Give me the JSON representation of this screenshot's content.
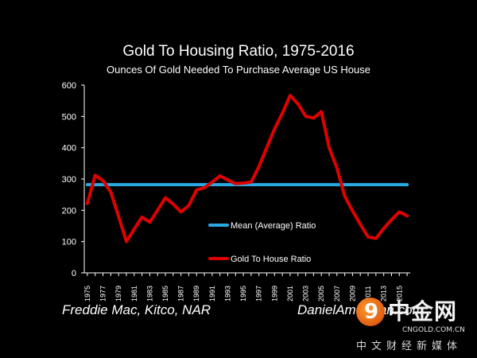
{
  "chart_data": {
    "type": "line",
    "title": "Gold To Housing Ratio, 1975-2016",
    "subtitle": "Ounces Of Gold Needed To Purchase Average US House",
    "ylim": [
      0,
      600
    ],
    "yticks": [
      0,
      100,
      200,
      300,
      400,
      500,
      600
    ],
    "xlim": [
      1974.6,
      2016.4
    ],
    "xticks": [
      "1975",
      "1977",
      "1979",
      "1981",
      "1983",
      "1985",
      "1987",
      "1989",
      "1991",
      "1993",
      "1995",
      "1997",
      "1999",
      "2001",
      "2003",
      "2005",
      "2007",
      "2009",
      "2011",
      "2013",
      "2015"
    ],
    "grid": false,
    "legend_position": "center-right",
    "series": [
      {
        "name": "Mean (Average) Ratio",
        "color": "#2aa9e0",
        "x": [
          1975,
          2016
        ],
        "y": [
          282,
          282
        ]
      },
      {
        "name": "Gold To House Ratio",
        "color": "#e00000",
        "x": [
          1975,
          1976,
          1977,
          1978,
          1979,
          1980,
          1981,
          1982,
          1983,
          1984,
          1985,
          1986,
          1987,
          1988,
          1989,
          1990,
          1991,
          1992,
          1993,
          1994,
          1995,
          1996,
          1997,
          1998,
          1999,
          2000,
          2001,
          2002,
          2003,
          2004,
          2005,
          2006,
          2007,
          2008,
          2009,
          2010,
          2011,
          2012,
          2013,
          2014,
          2015,
          2016
        ],
        "y": [
          222,
          312,
          295,
          258,
          180,
          100,
          140,
          178,
          162,
          200,
          240,
          220,
          195,
          215,
          265,
          272,
          290,
          310,
          297,
          285,
          287,
          290,
          340,
          400,
          460,
          510,
          567,
          540,
          500,
          495,
          515,
          400,
          335,
          245,
          198,
          155,
          115,
          110,
          142,
          170,
          195,
          182
        ]
      }
    ]
  },
  "footer": {
    "source": "Freddie Mac, Kitco, NAR",
    "site": "DanielAmerman.com"
  },
  "watermark": {
    "mark": "9",
    "name": "中金网",
    "url": "CNGOLD.COM.CN",
    "tagline": "中文财经新媒体"
  }
}
